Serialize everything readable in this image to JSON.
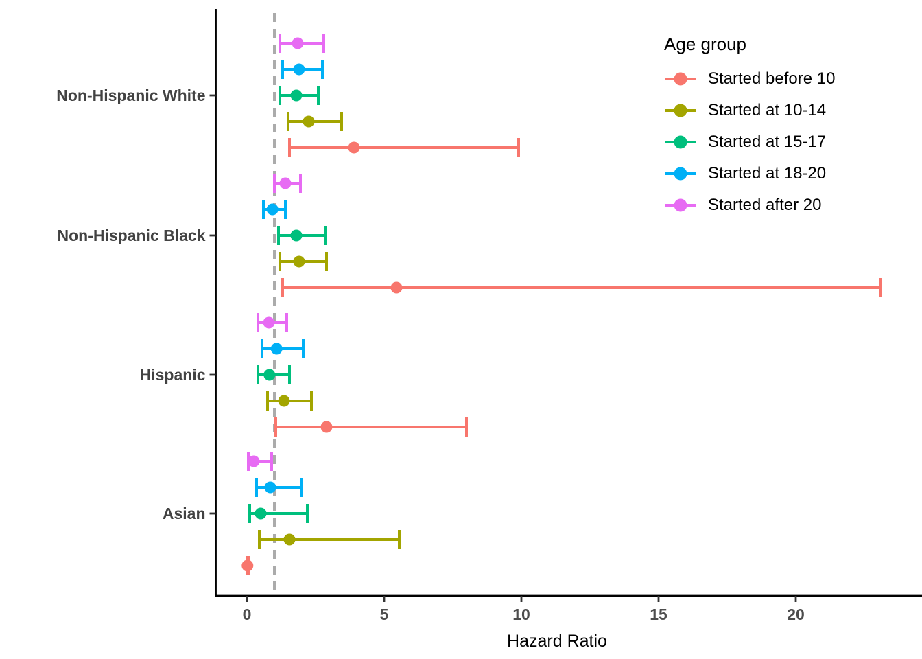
{
  "chart_data": {
    "type": "scatter",
    "subtype": "horizontal-forest-plot-with-error-bars",
    "title": "",
    "xlabel": "Hazard Ratio",
    "ylabel": "",
    "x_ticks": [
      0,
      5,
      10,
      15,
      20
    ],
    "x_tick_labels": [
      "0",
      "5",
      "10",
      "15",
      "20"
    ],
    "xlim": [
      -1.15,
      24.6
    ],
    "grid": false,
    "reference_line_x": 1.0,
    "legend_title": "Age group",
    "legend_position": "top-right-inside",
    "categories": [
      "Non-Hispanic White",
      "Non-Hispanic Black",
      "Hispanic",
      "Asian"
    ],
    "series": [
      {
        "name": "Started before 10",
        "color": "#F8766D",
        "points": [
          {
            "category": "Non-Hispanic White",
            "hr": 3.9,
            "low": 1.55,
            "high": 9.9
          },
          {
            "category": "Non-Hispanic Black",
            "hr": 5.45,
            "low": 1.3,
            "high": 23.1
          },
          {
            "category": "Hispanic",
            "hr": 2.9,
            "low": 1.05,
            "high": 8.0
          },
          {
            "category": "Asian",
            "hr": 0.02,
            "low": 0.0,
            "high": 0.05
          }
        ]
      },
      {
        "name": "Started at 10-14",
        "color": "#A3A500",
        "points": [
          {
            "category": "Non-Hispanic White",
            "hr": 2.25,
            "low": 1.5,
            "high": 3.45
          },
          {
            "category": "Non-Hispanic Black",
            "hr": 1.9,
            "low": 1.2,
            "high": 2.9
          },
          {
            "category": "Hispanic",
            "hr": 1.35,
            "low": 0.75,
            "high": 2.35
          },
          {
            "category": "Asian",
            "hr": 1.55,
            "low": 0.45,
            "high": 5.55
          }
        ]
      },
      {
        "name": "Started at 15-17",
        "color": "#00BF7D",
        "points": [
          {
            "category": "Non-Hispanic White",
            "hr": 1.8,
            "low": 1.2,
            "high": 2.6
          },
          {
            "category": "Non-Hispanic Black",
            "hr": 1.8,
            "low": 1.15,
            "high": 2.85
          },
          {
            "category": "Hispanic",
            "hr": 0.82,
            "low": 0.4,
            "high": 1.55
          },
          {
            "category": "Asian",
            "hr": 0.5,
            "low": 0.1,
            "high": 2.2
          }
        ]
      },
      {
        "name": "Started at 18-20",
        "color": "#00B0F6",
        "points": [
          {
            "category": "Non-Hispanic White",
            "hr": 1.9,
            "low": 1.3,
            "high": 2.75
          },
          {
            "category": "Non-Hispanic Black",
            "hr": 0.93,
            "low": 0.6,
            "high": 1.4
          },
          {
            "category": "Hispanic",
            "hr": 1.08,
            "low": 0.55,
            "high": 2.05
          },
          {
            "category": "Asian",
            "hr": 0.85,
            "low": 0.35,
            "high": 2.0
          }
        ]
      },
      {
        "name": "Started after 20",
        "color": "#E76BF3",
        "points": [
          {
            "category": "Non-Hispanic White",
            "hr": 1.85,
            "low": 1.2,
            "high": 2.8
          },
          {
            "category": "Non-Hispanic Black",
            "hr": 1.4,
            "low": 1.0,
            "high": 1.95
          },
          {
            "category": "Hispanic",
            "hr": 0.8,
            "low": 0.4,
            "high": 1.45
          },
          {
            "category": "Asian",
            "hr": 0.25,
            "low": 0.05,
            "high": 0.9
          }
        ]
      }
    ],
    "style_colors": {
      "background": "#FFFFFF",
      "axis_line": "#000000",
      "tick_label": "#4D4D4D",
      "category_label": "#424242",
      "reference_line": "#ABABAB",
      "axis_title": "#000000",
      "legend_text": "#000000"
    }
  }
}
